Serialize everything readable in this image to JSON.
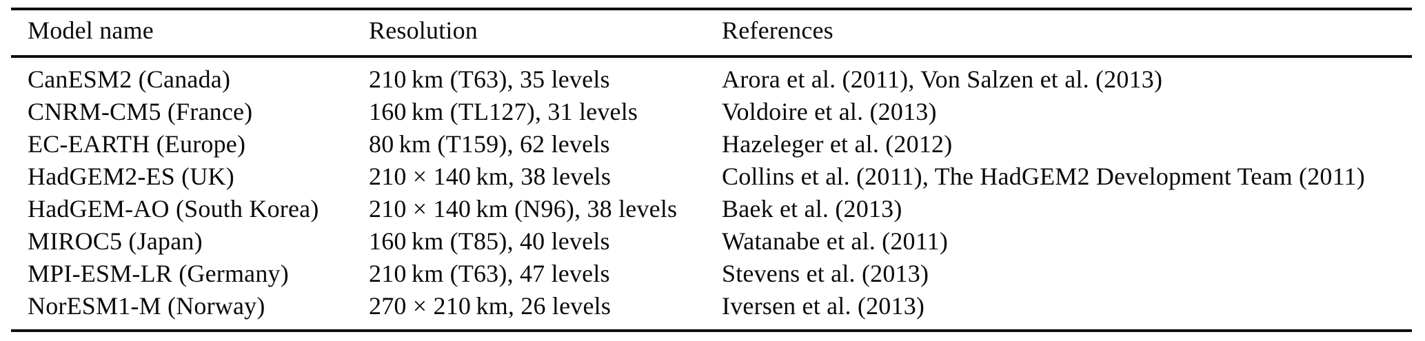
{
  "table": {
    "columns": {
      "model": "Model name",
      "resolution": "Resolution",
      "references": "References"
    },
    "rows": [
      {
        "model": "CanESM2 (Canada)",
        "resolution": "210 km (T63), 35 levels",
        "references": "Arora et al. (2011), Von Salzen et al. (2013)"
      },
      {
        "model": "CNRM-CM5 (France)",
        "resolution": "160 km (TL127), 31 levels",
        "references": "Voldoire et al. (2013)"
      },
      {
        "model": "EC-EARTH (Europe)",
        "resolution": "80 km (T159), 62 levels",
        "references": "Hazeleger et al. (2012)"
      },
      {
        "model": "HadGEM2-ES (UK)",
        "resolution": "210 × 140 km, 38 levels",
        "references": "Collins et al. (2011), The HadGEM2 Development Team (2011)"
      },
      {
        "model": "HadGEM-AO (South Korea)",
        "resolution": "210 × 140 km (N96), 38 levels",
        "references": "Baek et al. (2013)"
      },
      {
        "model": "MIROC5 (Japan)",
        "resolution": "160 km (T85), 40 levels",
        "references": "Watanabe et al. (2011)"
      },
      {
        "model": "MPI-ESM-LR (Germany)",
        "resolution": "210 km (T63), 47 levels",
        "references": "Stevens et al. (2013)"
      },
      {
        "model": "NorESM1-M (Norway)",
        "resolution": "270 × 210 km, 26 levels",
        "references": "Iversen et al. (2013)"
      }
    ]
  }
}
